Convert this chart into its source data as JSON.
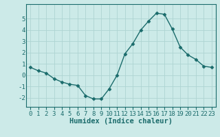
{
  "x": [
    0,
    1,
    2,
    3,
    4,
    5,
    6,
    7,
    8,
    9,
    10,
    11,
    12,
    13,
    14,
    15,
    16,
    17,
    18,
    19,
    20,
    21,
    22,
    23
  ],
  "y": [
    0.7,
    0.4,
    0.2,
    -0.3,
    -0.6,
    -0.8,
    -0.9,
    -1.8,
    -2.1,
    -2.1,
    -1.2,
    0.0,
    1.9,
    2.8,
    4.0,
    4.8,
    5.5,
    5.4,
    4.1,
    2.5,
    1.8,
    1.4,
    0.8,
    0.7
  ],
  "line_color": "#1a6b6b",
  "marker": "D",
  "marker_size": 2.5,
  "bg_color": "#cceae8",
  "grid_color": "#aed4d2",
  "xlabel": "Humidex (Indice chaleur)",
  "xlim": [
    -0.5,
    23.5
  ],
  "ylim": [
    -2.8,
    6.3
  ],
  "yticks": [
    -2,
    -1,
    0,
    1,
    2,
    3,
    4,
    5
  ],
  "xticks": [
    0,
    1,
    2,
    3,
    4,
    5,
    6,
    7,
    8,
    9,
    10,
    11,
    12,
    13,
    14,
    15,
    16,
    17,
    18,
    19,
    20,
    21,
    22,
    23
  ],
  "tick_label_size": 6.5,
  "xlabel_size": 7.5,
  "line_width": 1.0,
  "font_family": "monospace"
}
